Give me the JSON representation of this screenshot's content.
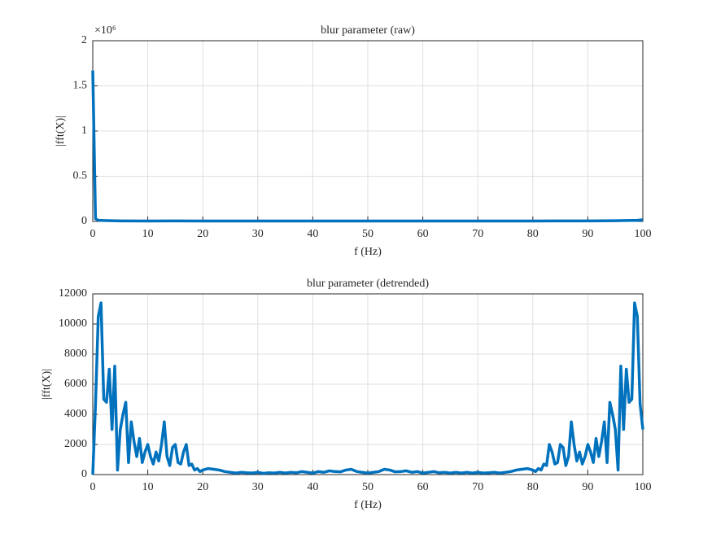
{
  "chart_data": [
    {
      "type": "line",
      "title": "blur parameter (raw)",
      "xlabel": "f (Hz)",
      "ylabel": "|fft(X)|",
      "exponent": "×10⁶",
      "x": [
        0,
        0.5,
        1,
        5,
        10,
        15,
        20,
        25,
        30,
        35,
        40,
        45,
        50,
        55,
        60,
        65,
        70,
        75,
        80,
        85,
        90,
        95,
        99,
        100
      ],
      "series": [
        {
          "name": "blur parameter",
          "color": "#0072BD",
          "values": [
            1.67,
            0.03,
            0.012,
            0.006,
            0.005,
            0.006,
            0.004,
            0.005,
            0.005,
            0.004,
            0.005,
            0.004,
            0.005,
            0.004,
            0.005,
            0.004,
            0.005,
            0.005,
            0.004,
            0.006,
            0.006,
            0.008,
            0.012,
            0.018
          ]
        }
      ],
      "xlim": [
        0,
        100
      ],
      "xticks": [
        0,
        10,
        20,
        30,
        40,
        50,
        60,
        70,
        80,
        90,
        100
      ],
      "ylim": [
        0,
        2
      ],
      "yticks": [
        0,
        0.5,
        1,
        1.5,
        2
      ],
      "grid": true
    },
    {
      "type": "line",
      "title": "blur parameter (detrended)",
      "xlabel": "f (Hz)",
      "ylabel": "|fft(X)|",
      "x": [
        0,
        0.5,
        1,
        1.5,
        2,
        2.5,
        3,
        3.5,
        4,
        4.5,
        5,
        5.5,
        6,
        6.5,
        7,
        7.5,
        8,
        8.5,
        9,
        9.5,
        10,
        10.5,
        11,
        11.5,
        12,
        12.5,
        13,
        13.5,
        14,
        14.5,
        15,
        15.5,
        16,
        16.5,
        17,
        17.5,
        18,
        18.5,
        19,
        19.5,
        20,
        21,
        22,
        23,
        24,
        25,
        26,
        27,
        28,
        29,
        30,
        31,
        32,
        33,
        34,
        35,
        36,
        37,
        38,
        39,
        40,
        41,
        42,
        43,
        44,
        45,
        46,
        47,
        48,
        49,
        50,
        51,
        52,
        53,
        54,
        55,
        56,
        57,
        58,
        59,
        60,
        61,
        62,
        63,
        64,
        65,
        66,
        67,
        68,
        69,
        70,
        71,
        72,
        73,
        74,
        75,
        76,
        77,
        78,
        79,
        80,
        80.5,
        81,
        81.5,
        82,
        82.5,
        83,
        83.5,
        84,
        84.5,
        85,
        85.5,
        86,
        86.5,
        87,
        87.5,
        88,
        88.5,
        89,
        89.5,
        90,
        90.5,
        91,
        91.5,
        92,
        92.5,
        93,
        93.5,
        94,
        94.5,
        95,
        95.5,
        96,
        96.5,
        97,
        97.5,
        98,
        98.5,
        99,
        99.5,
        100
      ],
      "series": [
        {
          "name": "blur parameter",
          "color": "#0072BD",
          "values": [
            0,
            4700,
            10500,
            11400,
            5000,
            4800,
            7000,
            3000,
            7200,
            300,
            3000,
            4000,
            4800,
            800,
            3500,
            2200,
            1200,
            2400,
            800,
            1500,
            2000,
            1200,
            700,
            1500,
            900,
            2000,
            3500,
            1200,
            600,
            1800,
            2000,
            800,
            700,
            1500,
            2000,
            600,
            700,
            300,
            400,
            200,
            300,
            400,
            350,
            300,
            200,
            150,
            100,
            150,
            120,
            100,
            150,
            80,
            120,
            100,
            150,
            100,
            150,
            120,
            200,
            150,
            100,
            200,
            150,
            250,
            200,
            180,
            300,
            350,
            200,
            150,
            100,
            150,
            200,
            350,
            300,
            180,
            200,
            250,
            150,
            200,
            100,
            150,
            200,
            120,
            150,
            100,
            150,
            100,
            150,
            100,
            150,
            100,
            120,
            150,
            100,
            150,
            200,
            300,
            350,
            400,
            300,
            200,
            400,
            300,
            700,
            600,
            2000,
            1500,
            700,
            800,
            2000,
            1800,
            600,
            1200,
            3500,
            2000,
            900,
            1500,
            700,
            1200,
            2000,
            1500,
            800,
            2400,
            1200,
            2200,
            3500,
            800,
            4800,
            4000,
            3000,
            300,
            7200,
            3000,
            7000,
            4800,
            5000,
            11400,
            10500,
            4700,
            3000
          ]
        }
      ],
      "xlim": [
        0,
        100
      ],
      "xticks": [
        0,
        10,
        20,
        30,
        40,
        50,
        60,
        70,
        80,
        90,
        100
      ],
      "ylim": [
        0,
        12000
      ],
      "yticks": [
        0,
        2000,
        4000,
        6000,
        8000,
        10000,
        12000
      ],
      "grid": true
    }
  ]
}
